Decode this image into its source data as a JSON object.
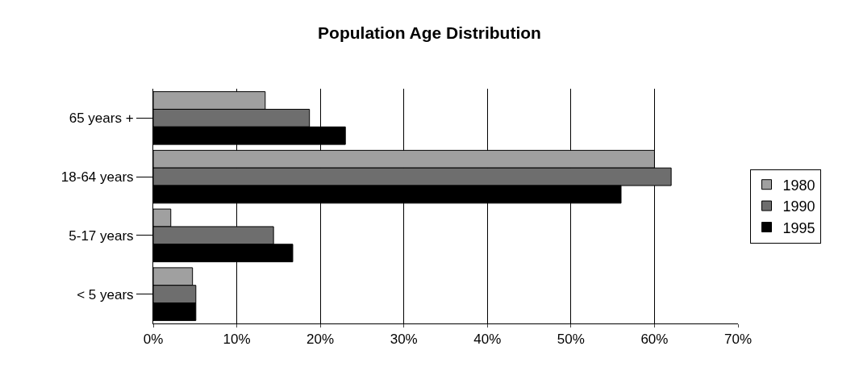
{
  "chart_data": {
    "type": "bar",
    "orientation": "horizontal",
    "title": "Population Age Distribution",
    "categories": [
      "65 years +",
      "18-64 years",
      "5-17 years",
      "< 5 years"
    ],
    "series": [
      {
        "name": "1980",
        "color": "#a0a0a0",
        "values": [
          13.4,
          60,
          2.1,
          4.7
        ]
      },
      {
        "name": "1990",
        "color": "#6e6e6e",
        "values": [
          18.7,
          62,
          14.4,
          5.1
        ]
      },
      {
        "name": "1995",
        "color": "#000000",
        "values": [
          23.0,
          56,
          16.7,
          5.1
        ]
      }
    ],
    "xlim": [
      0,
      70
    ],
    "xticks": [
      {
        "value": 0,
        "label": "0%"
      },
      {
        "value": 10,
        "label": "10%"
      },
      {
        "value": 20,
        "label": "20%"
      },
      {
        "value": 30,
        "label": "30%"
      },
      {
        "value": 40,
        "label": "40%"
      },
      {
        "value": 50,
        "label": "50%"
      },
      {
        "value": 60,
        "label": "60%"
      },
      {
        "value": 70,
        "label": "70%"
      }
    ],
    "grid": "x",
    "legend": "right"
  }
}
